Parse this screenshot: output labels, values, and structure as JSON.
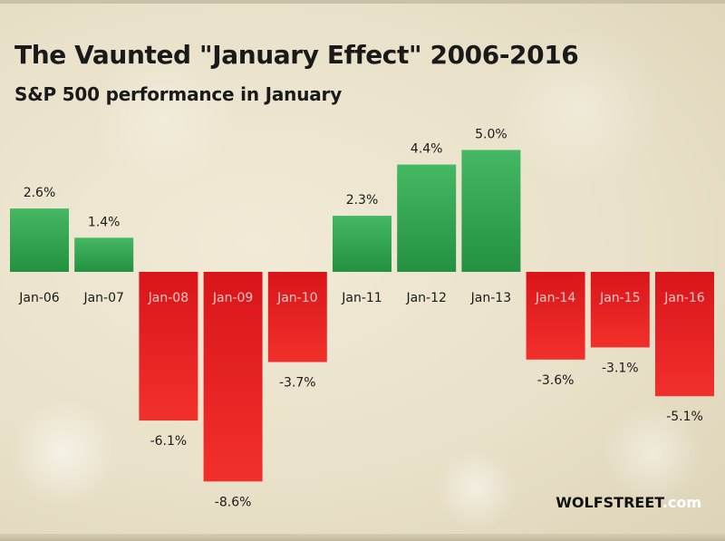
{
  "chart_data": {
    "type": "bar",
    "title": "The Vaunted \"January Effect\" 2006-2016",
    "subtitle": "S&P 500 performance in January",
    "categories": [
      "Jan-06",
      "Jan-07",
      "Jan-08",
      "Jan-09",
      "Jan-10",
      "Jan-11",
      "Jan-12",
      "Jan-13",
      "Jan-14",
      "Jan-15",
      "Jan-16"
    ],
    "values": [
      2.6,
      1.4,
      -6.1,
      -8.6,
      -3.7,
      2.3,
      4.4,
      5.0,
      -3.6,
      -3.1,
      -5.1
    ],
    "data_labels": [
      "2.6%",
      "1.4%",
      "-6.1%",
      "-8.6%",
      "-3.7%",
      "2.3%",
      "4.4%",
      "5.0%",
      "-3.6%",
      "-3.1%",
      "-5.1%"
    ],
    "unit": "%",
    "xlabel": "",
    "ylabel": "",
    "grid": false,
    "legend": "none",
    "colors": {
      "positive": "#2fa84f",
      "negative": "#e8201f"
    }
  },
  "branding": {
    "wolfstreet": "WOLFSTREET",
    "dotcom": ".com",
    "wolfstreet_color": "#111111",
    "dotcom_color": "#ffffff"
  }
}
